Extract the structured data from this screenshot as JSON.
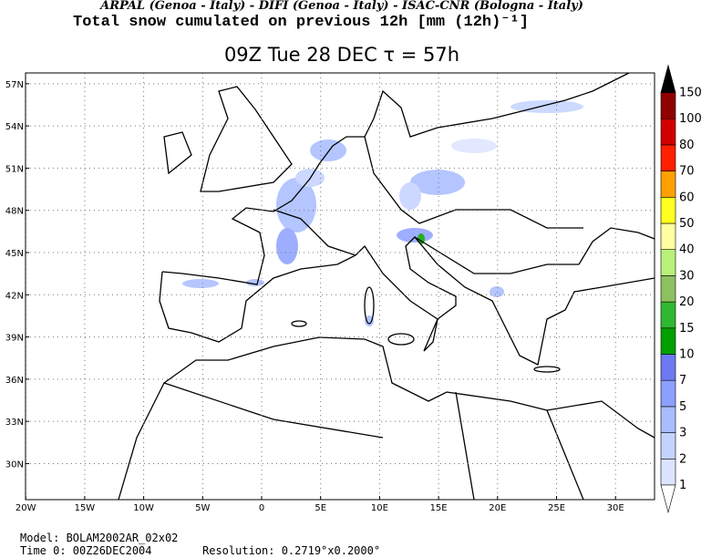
{
  "header": {
    "institutions": "ARPAL (Genoa - Italy)  -  DIFI (Genoa - Italy)  -  ISAC-CNR (Bologna - Italy)",
    "field": "Total snow cumulated on previous 12h [mm (12h)⁻¹]"
  },
  "title": "09Z Tue 28 DEC  τ = 57h",
  "map": {
    "lon_ticks": [
      {
        "value": -20,
        "label": "20W"
      },
      {
        "value": -15,
        "label": "15W"
      },
      {
        "value": -10,
        "label": "10W"
      },
      {
        "value": -5,
        "label": "5W"
      },
      {
        "value": 0,
        "label": "0"
      },
      {
        "value": 5,
        "label": "5E"
      },
      {
        "value": 10,
        "label": "10E"
      },
      {
        "value": 15,
        "label": "15E"
      },
      {
        "value": 20,
        "label": "20E"
      },
      {
        "value": 25,
        "label": "25E"
      },
      {
        "value": 30,
        "label": "30E"
      }
    ],
    "lat_ticks": [
      {
        "value": 30,
        "label": "30N"
      },
      {
        "value": 33,
        "label": "33N"
      },
      {
        "value": 36,
        "label": "36N"
      },
      {
        "value": 39,
        "label": "39N"
      },
      {
        "value": 42,
        "label": "42N"
      },
      {
        "value": 45,
        "label": "45N"
      },
      {
        "value": 48,
        "label": "48N"
      },
      {
        "value": 51,
        "label": "51N"
      },
      {
        "value": 54,
        "label": "54N"
      },
      {
        "value": 57,
        "label": "57N"
      }
    ]
  },
  "colorbar": {
    "levels": [
      1,
      2,
      3,
      5,
      7,
      10,
      15,
      20,
      30,
      40,
      50,
      60,
      70,
      80,
      100,
      150
    ],
    "colors": [
      "#dce4ff",
      "#c4d2ff",
      "#a8bcff",
      "#8ca0ff",
      "#6e78f0",
      "#00a000",
      "#30b830",
      "#8cc060",
      "#b8f07a",
      "#ffffa0",
      "#ffff20",
      "#ffa000",
      "#ff2000",
      "#d00000",
      "#900000"
    ],
    "below_color": "#ffffff",
    "above_color": "#000000"
  },
  "footer": {
    "model": "Model: BOLAM2002AR_02x02",
    "time0": "Time 0: 00Z26DEC2004",
    "resolution": "Resolution: 0.2719°x0.2000°"
  }
}
